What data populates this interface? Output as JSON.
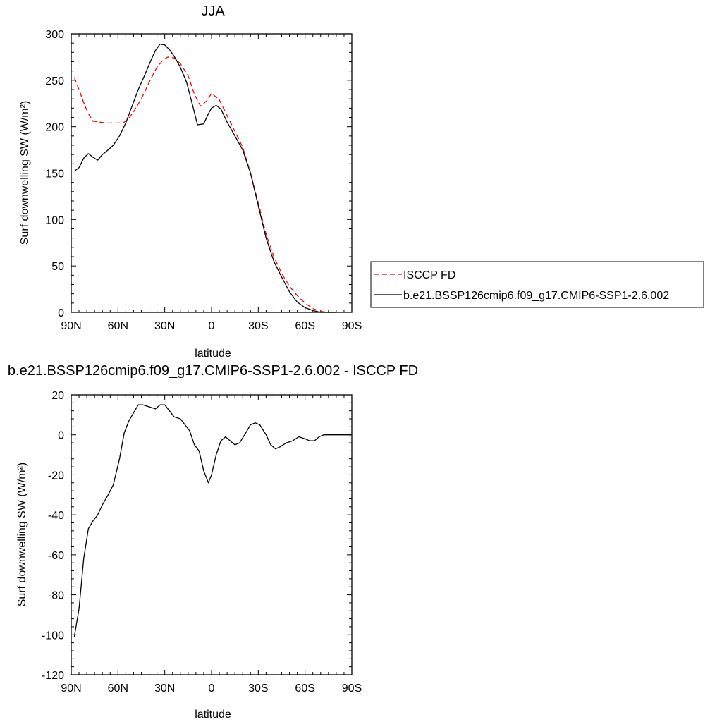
{
  "chart_data": [
    {
      "type": "line",
      "title": "JJA",
      "xlabel": "latitude",
      "ylabel": "Surf downwelling SW (W/m²)",
      "xlim": [
        90,
        -90
      ],
      "ylim": [
        0,
        300
      ],
      "x_ticks": [
        90,
        60,
        30,
        0,
        -30,
        -60,
        -90
      ],
      "x_tick_labels": [
        "90N",
        "60N",
        "30N",
        "0",
        "30S",
        "60S",
        "90S"
      ],
      "y_ticks": [
        0,
        50,
        100,
        150,
        200,
        250,
        300
      ],
      "y_tick_labels": [
        "0",
        "50",
        "100",
        "150",
        "200",
        "250",
        "300"
      ],
      "legend_position": "right",
      "series": [
        {
          "name": "ISCCP FD",
          "color": "#ff0000",
          "dash": "dashed",
          "x": [
            88,
            85,
            82,
            79,
            76,
            72,
            67,
            62,
            57,
            54,
            50,
            45,
            40,
            35,
            31,
            28,
            24,
            20,
            15,
            11,
            7,
            3,
            0,
            -5,
            -10,
            -15,
            -20,
            -25,
            -30,
            -35,
            -40,
            -45,
            -50,
            -55,
            -60,
            -65,
            -70,
            -75,
            -80
          ],
          "y": [
            253,
            240,
            226,
            214,
            206,
            205,
            204,
            204,
            204,
            207,
            216,
            230,
            248,
            264,
            272,
            275,
            274,
            268,
            255,
            235,
            222,
            228,
            236,
            229,
            212,
            195,
            178,
            150,
            118,
            84,
            60,
            42,
            28,
            18,
            10,
            4,
            1,
            0,
            0
          ]
        },
        {
          "name": "b.e21.BSSP126cmip6.f09_g17.CMIP6-SSP1-2.6.002",
          "color": "#000000",
          "dash": "solid",
          "x": [
            88,
            85,
            82,
            79,
            76,
            73,
            70,
            67,
            63,
            59,
            55,
            51,
            47,
            43,
            39,
            36,
            33,
            30,
            27,
            24,
            20,
            16,
            12,
            9,
            5,
            2,
            0,
            -3,
            -6,
            -10,
            -15,
            -20,
            -25,
            -30,
            -35,
            -40,
            -45,
            -50,
            -55,
            -60,
            -65,
            -70,
            -75,
            -80
          ],
          "y": [
            152,
            156,
            166,
            171,
            167,
            164,
            170,
            174,
            180,
            190,
            204,
            222,
            240,
            255,
            271,
            282,
            289,
            288,
            283,
            276,
            264,
            248,
            222,
            202,
            203,
            214,
            220,
            223,
            219,
            205,
            190,
            175,
            150,
            115,
            80,
            55,
            38,
            22,
            11,
            5,
            2,
            0,
            0,
            0
          ]
        }
      ]
    },
    {
      "type": "line",
      "title": "b.e21.BSSP126cmip6.f09_g17.CMIP6-SSP1-2.6.002 - ISCCP FD",
      "xlabel": "latitude",
      "ylabel": "Surf downwelling SW (W/m²)",
      "xlim": [
        90,
        -90
      ],
      "ylim": [
        -120,
        20
      ],
      "x_ticks": [
        90,
        60,
        30,
        0,
        -30,
        -60,
        -90
      ],
      "x_tick_labels": [
        "90N",
        "60N",
        "30N",
        "0",
        "30S",
        "60S",
        "90S"
      ],
      "y_ticks": [
        -120,
        -100,
        -80,
        -60,
        -40,
        -20,
        0,
        20
      ],
      "y_tick_labels": [
        "-120",
        "-100",
        "-80",
        "-60",
        "-40",
        "-20",
        "0",
        "20"
      ],
      "series": [
        {
          "color": "#000000",
          "x": [
            88,
            85,
            82,
            79,
            76,
            73,
            70,
            67,
            63,
            59,
            56,
            53,
            50,
            47,
            44,
            40,
            36,
            33,
            30,
            27,
            24,
            20,
            17,
            14,
            11,
            8,
            5,
            2,
            0,
            -3,
            -6,
            -9,
            -12,
            -15,
            -18,
            -22,
            -25,
            -28,
            -31,
            -35,
            -38,
            -41,
            -44,
            -48,
            -52,
            -56,
            -60,
            -63,
            -66,
            -69,
            -72,
            -76,
            -80,
            -85,
            -90
          ],
          "y": [
            -101,
            -87,
            -62,
            -47,
            -43,
            -40,
            -35,
            -31,
            -25,
            -12,
            1,
            7,
            11,
            15,
            15,
            14,
            13,
            15,
            15,
            12,
            9,
            8,
            5,
            2,
            -5,
            -8,
            -18,
            -24,
            -20,
            -10,
            -3,
            -1,
            -3,
            -5,
            -4,
            1,
            5,
            6,
            5,
            0,
            -5,
            -7,
            -6,
            -4,
            -3,
            -1,
            -2,
            -3,
            -3,
            -1,
            0,
            0,
            0,
            0,
            0
          ]
        }
      ]
    }
  ]
}
